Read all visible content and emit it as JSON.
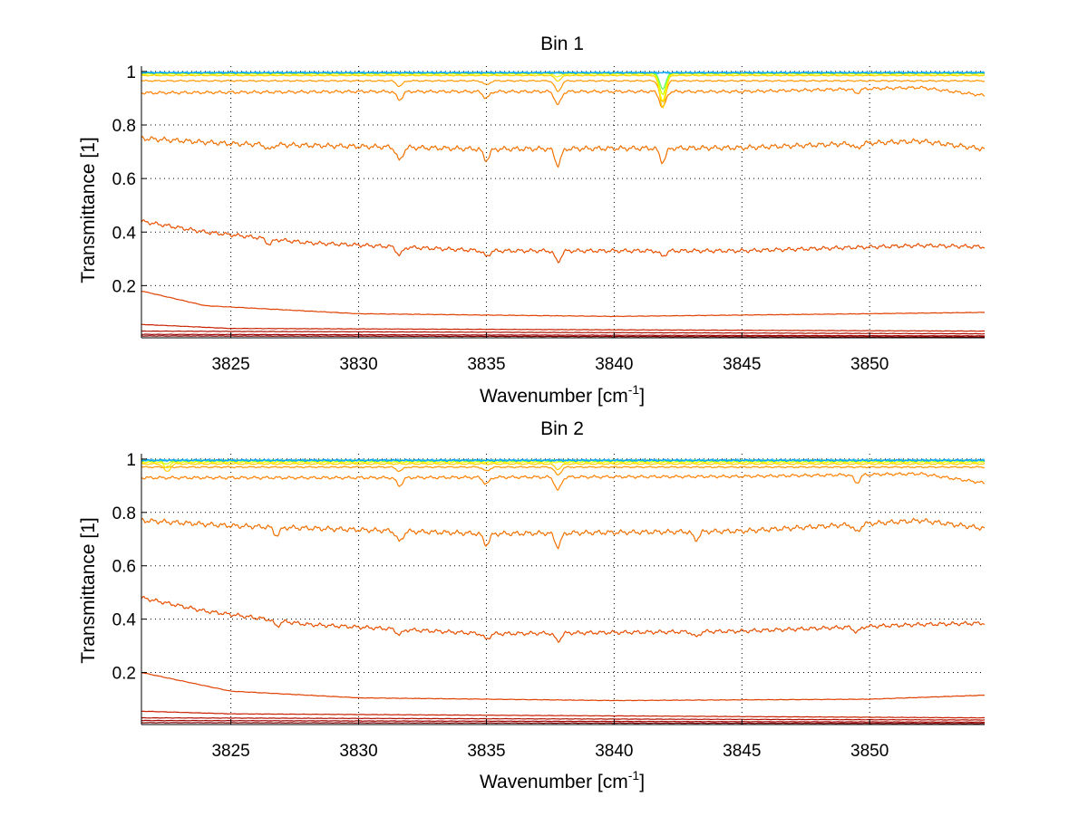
{
  "chart_data": [
    {
      "type": "line",
      "title": "Bin 1",
      "xlabel": "Wavenumber [cm",
      "xlabel_sup": "-1",
      "xlabel_end": "]",
      "ylabel": "Transmittance [1]",
      "xlim": [
        3821.5,
        3854.5
      ],
      "ylim": [
        0.005,
        1.02
      ],
      "xticks": [
        3825,
        3830,
        3835,
        3840,
        3845,
        3850
      ],
      "yticks": [
        0.2,
        0.4,
        0.6,
        0.8,
        1
      ],
      "grid": true,
      "series": [
        {
          "color": "#00a0ff",
          "anchors": [
            [
              3821.5,
              0.995
            ],
            [
              3854.5,
              0.995
            ]
          ],
          "noise": 0.003,
          "dips": []
        },
        {
          "color": "#40c0ff",
          "anchors": [
            [
              3821.5,
              0.996
            ],
            [
              3854.5,
              0.996
            ]
          ],
          "noise": 0.003,
          "dips": []
        },
        {
          "color": "#60ff60",
          "anchors": [
            [
              3821.5,
              0.995
            ],
            [
              3854.5,
              0.995
            ]
          ],
          "noise": 0.002,
          "dips": [
            [
              3841.9,
              0.06
            ]
          ]
        },
        {
          "color": "#c8ff00",
          "anchors": [
            [
              3821.5,
              0.993
            ],
            [
              3854.5,
              0.993
            ]
          ],
          "noise": 0.002,
          "dips": [
            [
              3841.9,
              0.08
            ]
          ]
        },
        {
          "color": "#ffff00",
          "anchors": [
            [
              3821.5,
              0.99
            ],
            [
              3854.5,
              0.99
            ]
          ],
          "noise": 0.002,
          "dips": [
            [
              3837.8,
              0.01
            ],
            [
              3841.9,
              0.1
            ]
          ]
        },
        {
          "color": "#ffd000",
          "anchors": [
            [
              3821.5,
              0.985
            ],
            [
              3854.5,
              0.985
            ]
          ],
          "noise": 0.002,
          "dips": [
            [
              3837.8,
              0.02
            ],
            [
              3841.9,
              0.12
            ]
          ]
        },
        {
          "color": "#ff9900",
          "anchors": [
            [
              3821.5,
              0.965
            ],
            [
              3854.5,
              0.965
            ]
          ],
          "noise": 0.003,
          "dips": [
            [
              3831.6,
              0.02
            ],
            [
              3835,
              0.015
            ],
            [
              3837.8,
              0.04
            ],
            [
              3841.9,
              0.08
            ]
          ]
        },
        {
          "color": "#ff8000",
          "anchors": [
            [
              3821.5,
              0.92
            ],
            [
              3830,
              0.925
            ],
            [
              3845,
              0.925
            ],
            [
              3852,
              0.94
            ],
            [
              3854.5,
              0.91
            ]
          ],
          "noise": 0.006,
          "dips": [
            [
              3831.6,
              0.03
            ],
            [
              3835,
              0.025
            ],
            [
              3837.8,
              0.05
            ],
            [
              3841.9,
              0.06
            ],
            [
              3849.5,
              0.015
            ]
          ]
        },
        {
          "color": "#f07000",
          "anchors": [
            [
              3821.5,
              0.75
            ],
            [
              3825,
              0.73
            ],
            [
              3835,
              0.71
            ],
            [
              3845,
              0.715
            ],
            [
              3852,
              0.74
            ],
            [
              3854.5,
              0.71
            ]
          ],
          "noise": 0.01,
          "dips": [
            [
              3826.5,
              0.02
            ],
            [
              3831.6,
              0.05
            ],
            [
              3835,
              0.04
            ],
            [
              3837.8,
              0.06
            ],
            [
              3841.9,
              0.05
            ],
            [
              3849.5,
              0.02
            ]
          ]
        },
        {
          "color": "#e85000",
          "anchors": [
            [
              3821.5,
              0.44
            ],
            [
              3824,
              0.4
            ],
            [
              3828,
              0.36
            ],
            [
              3835,
              0.33
            ],
            [
              3845,
              0.33
            ],
            [
              3852,
              0.35
            ],
            [
              3854.5,
              0.345
            ]
          ],
          "noise": 0.008,
          "dips": [
            [
              3826.5,
              0.02
            ],
            [
              3831.6,
              0.03
            ],
            [
              3835,
              0.02
            ],
            [
              3837.8,
              0.04
            ],
            [
              3841.9,
              0.02
            ]
          ]
        },
        {
          "color": "#e04000",
          "anchors": [
            [
              3821.5,
              0.18
            ],
            [
              3824,
              0.125
            ],
            [
              3830,
              0.095
            ],
            [
              3840,
              0.085
            ],
            [
              3850,
              0.095
            ],
            [
              3854.5,
              0.1
            ]
          ],
          "noise": 0.001,
          "dips": []
        },
        {
          "color": "#c82000",
          "anchors": [
            [
              3821.5,
              0.055
            ],
            [
              3825,
              0.04
            ],
            [
              3854.5,
              0.03
            ]
          ],
          "noise": 0.0008,
          "dips": []
        },
        {
          "color": "#b01000",
          "anchors": [
            [
              3821.5,
              0.03
            ],
            [
              3854.5,
              0.02
            ]
          ],
          "noise": 0.0008,
          "dips": []
        },
        {
          "color": "#a00000",
          "anchors": [
            [
              3821.5,
              0.018
            ],
            [
              3854.5,
              0.012
            ]
          ],
          "noise": 0.0008,
          "dips": []
        },
        {
          "color": "#800000",
          "anchors": [
            [
              3821.5,
              0.012
            ],
            [
              3854.5,
              0.008
            ]
          ],
          "noise": 0.0008,
          "dips": []
        }
      ]
    },
    {
      "type": "line",
      "title": "Bin 2",
      "xlabel": "Wavenumber [cm",
      "xlabel_sup": "-1",
      "xlabel_end": "]",
      "ylabel": "Transmittance [1]",
      "xlim": [
        3821.5,
        3854.5
      ],
      "ylim": [
        0.005,
        1.02
      ],
      "xticks": [
        3825,
        3830,
        3835,
        3840,
        3845,
        3850
      ],
      "yticks": [
        0.2,
        0.4,
        0.6,
        0.8,
        1
      ],
      "grid": true,
      "series": [
        {
          "color": "#00a0ff",
          "anchors": [
            [
              3821.5,
              0.995
            ],
            [
              3854.5,
              0.995
            ]
          ],
          "noise": 0.004,
          "dips": []
        },
        {
          "color": "#40c0ff",
          "anchors": [
            [
              3821.5,
              0.996
            ],
            [
              3854.5,
              0.996
            ]
          ],
          "noise": 0.004,
          "dips": []
        },
        {
          "color": "#60ff60",
          "anchors": [
            [
              3821.5,
              0.995
            ],
            [
              3854.5,
              0.995
            ]
          ],
          "noise": 0.003,
          "dips": []
        },
        {
          "color": "#c8ff00",
          "anchors": [
            [
              3821.5,
              0.992
            ],
            [
              3854.5,
              0.992
            ]
          ],
          "noise": 0.003,
          "dips": [
            [
              3822.5,
              0.01
            ]
          ]
        },
        {
          "color": "#ffff00",
          "anchors": [
            [
              3821.5,
              0.988
            ],
            [
              3854.5,
              0.988
            ]
          ],
          "noise": 0.003,
          "dips": [
            [
              3822.5,
              0.02
            ]
          ]
        },
        {
          "color": "#ffd000",
          "anchors": [
            [
              3821.5,
              0.982
            ],
            [
              3854.5,
              0.982
            ]
          ],
          "noise": 0.003,
          "dips": [
            [
              3822.5,
              0.03
            ],
            [
              3837.8,
              0.02
            ]
          ]
        },
        {
          "color": "#ff9900",
          "anchors": [
            [
              3821.5,
              0.97
            ],
            [
              3854.5,
              0.97
            ]
          ],
          "noise": 0.003,
          "dips": [
            [
              3831.6,
              0.015
            ],
            [
              3835,
              0.015
            ],
            [
              3837.8,
              0.03
            ]
          ]
        },
        {
          "color": "#ff8000",
          "anchors": [
            [
              3821.5,
              0.93
            ],
            [
              3830,
              0.93
            ],
            [
              3845,
              0.935
            ],
            [
              3852,
              0.945
            ],
            [
              3854.5,
              0.91
            ]
          ],
          "noise": 0.006,
          "dips": [
            [
              3831.6,
              0.03
            ],
            [
              3835,
              0.025
            ],
            [
              3837.8,
              0.05
            ],
            [
              3849.5,
              0.03
            ]
          ]
        },
        {
          "color": "#f07000",
          "anchors": [
            [
              3821.5,
              0.77
            ],
            [
              3825,
              0.75
            ],
            [
              3835,
              0.72
            ],
            [
              3845,
              0.73
            ],
            [
              3852,
              0.77
            ],
            [
              3854.5,
              0.74
            ]
          ],
          "noise": 0.01,
          "dips": [
            [
              3826.8,
              0.03
            ],
            [
              3831.6,
              0.04
            ],
            [
              3835,
              0.04
            ],
            [
              3837.8,
              0.05
            ],
            [
              3843.2,
              0.03
            ],
            [
              3849.5,
              0.03
            ]
          ]
        },
        {
          "color": "#e85000",
          "anchors": [
            [
              3821.5,
              0.48
            ],
            [
              3824,
              0.43
            ],
            [
              3828,
              0.38
            ],
            [
              3835,
              0.345
            ],
            [
              3845,
              0.355
            ],
            [
              3852,
              0.38
            ],
            [
              3854.5,
              0.385
            ]
          ],
          "noise": 0.008,
          "dips": [
            [
              3826.8,
              0.02
            ],
            [
              3831.6,
              0.02
            ],
            [
              3835,
              0.02
            ],
            [
              3837.8,
              0.03
            ],
            [
              3843.2,
              0.02
            ],
            [
              3849.5,
              0.02
            ]
          ]
        },
        {
          "color": "#e04000",
          "anchors": [
            [
              3821.5,
              0.2
            ],
            [
              3825,
              0.13
            ],
            [
              3830,
              0.105
            ],
            [
              3840,
              0.095
            ],
            [
              3850,
              0.1
            ],
            [
              3854.5,
              0.115
            ]
          ],
          "noise": 0.001,
          "dips": []
        },
        {
          "color": "#c82000",
          "anchors": [
            [
              3821.5,
              0.055
            ],
            [
              3825,
              0.045
            ],
            [
              3854.5,
              0.03
            ]
          ],
          "noise": 0.0008,
          "dips": []
        },
        {
          "color": "#b01000",
          "anchors": [
            [
              3821.5,
              0.03
            ],
            [
              3854.5,
              0.022
            ]
          ],
          "noise": 0.0008,
          "dips": []
        },
        {
          "color": "#a00000",
          "anchors": [
            [
              3821.5,
              0.02
            ],
            [
              3854.5,
              0.014
            ]
          ],
          "noise": 0.0008,
          "dips": []
        },
        {
          "color": "#800000",
          "anchors": [
            [
              3821.5,
              0.012
            ],
            [
              3854.5,
              0.009
            ]
          ],
          "noise": 0.0008,
          "dips": []
        }
      ]
    }
  ]
}
